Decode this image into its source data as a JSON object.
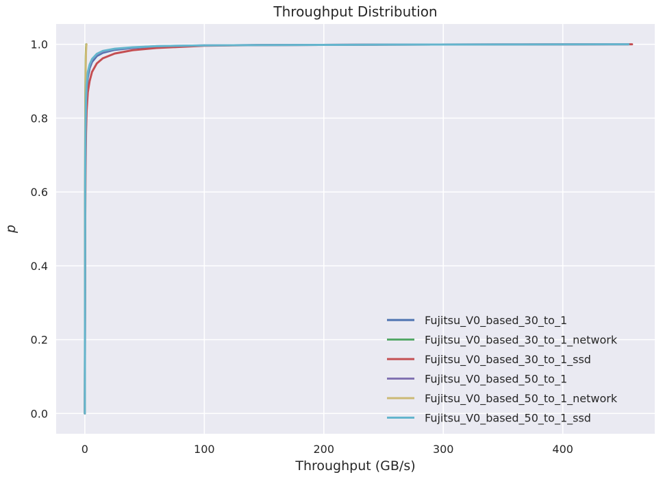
{
  "chart_data": {
    "type": "line",
    "title": "Throughput Distribution",
    "xlabel": "Throughput (GB/s)",
    "ylabel": "p",
    "xlim": [
      -24,
      477
    ],
    "ylim": [
      -0.055,
      1.055
    ],
    "xticks": [
      0,
      100,
      200,
      300,
      400
    ],
    "yticks": [
      0.0,
      0.2,
      0.4,
      0.6,
      0.8,
      1.0
    ],
    "xtick_labels": [
      "0",
      "100",
      "200",
      "300",
      "400"
    ],
    "ytick_labels": [
      "0.0",
      "0.2",
      "0.4",
      "0.6",
      "0.8",
      "1.0"
    ],
    "grid": true,
    "legend_position": "lower-right",
    "background": "#eaeaf2",
    "series": [
      {
        "name": "Fujitsu_V0_based_30_to_1",
        "color": "#4c72b0",
        "x": [
          0,
          0.3,
          0.6,
          1.0,
          1.5,
          2.5,
          4,
          6,
          10,
          15,
          25,
          40,
          60,
          100,
          150,
          250,
          350,
          455
        ],
        "y": [
          0.0,
          0.6,
          0.74,
          0.82,
          0.87,
          0.91,
          0.935,
          0.952,
          0.968,
          0.977,
          0.985,
          0.99,
          0.994,
          0.997,
          0.998,
          0.999,
          0.9995,
          1.0
        ]
      },
      {
        "name": "Fujitsu_V0_based_30_to_1_network",
        "color": "#55a868",
        "x": [
          0,
          0.2,
          0.4,
          0.6,
          0.8,
          1.0,
          1.2
        ],
        "y": [
          0.0,
          0.6,
          0.85,
          0.93,
          0.97,
          0.99,
          1.0
        ]
      },
      {
        "name": "Fujitsu_V0_based_30_to_1_ssd",
        "color": "#c44e52",
        "x": [
          0,
          0.3,
          0.6,
          1.0,
          1.5,
          2.5,
          4,
          6,
          10,
          15,
          25,
          40,
          60,
          100,
          150,
          250,
          350,
          458
        ],
        "y": [
          0.0,
          0.5,
          0.66,
          0.76,
          0.82,
          0.87,
          0.9,
          0.925,
          0.948,
          0.962,
          0.975,
          0.984,
          0.99,
          0.996,
          0.998,
          0.999,
          0.9995,
          1.0
        ]
      },
      {
        "name": "Fujitsu_V0_based_50_to_1",
        "color": "#8172b2",
        "x": [
          0,
          0.3,
          0.6,
          1.0,
          1.5,
          2.5,
          4,
          6,
          10,
          15,
          25,
          40,
          60,
          100,
          150,
          250,
          350,
          455
        ],
        "y": [
          0.0,
          0.62,
          0.76,
          0.84,
          0.885,
          0.92,
          0.942,
          0.958,
          0.972,
          0.98,
          0.987,
          0.991,
          0.995,
          0.997,
          0.998,
          0.999,
          0.9995,
          1.0
        ]
      },
      {
        "name": "Fujitsu_V0_based_50_to_1_network",
        "color": "#ccb974",
        "x": [
          0,
          0.2,
          0.4,
          0.6,
          0.8,
          1.0,
          1.2,
          1.4
        ],
        "y": [
          0.0,
          0.55,
          0.8,
          0.9,
          0.95,
          0.98,
          0.995,
          1.0
        ]
      },
      {
        "name": "Fujitsu_V0_based_50_to_1_ssd",
        "color": "#64b5cd",
        "x": [
          0,
          0.3,
          0.6,
          1.0,
          1.5,
          2.5,
          4,
          6,
          10,
          15,
          25,
          40,
          60,
          100,
          150,
          250,
          350,
          455
        ],
        "y": [
          0.0,
          0.64,
          0.78,
          0.85,
          0.89,
          0.925,
          0.945,
          0.96,
          0.974,
          0.982,
          0.988,
          0.992,
          0.995,
          0.997,
          0.998,
          0.999,
          0.9995,
          1.0
        ]
      }
    ]
  }
}
